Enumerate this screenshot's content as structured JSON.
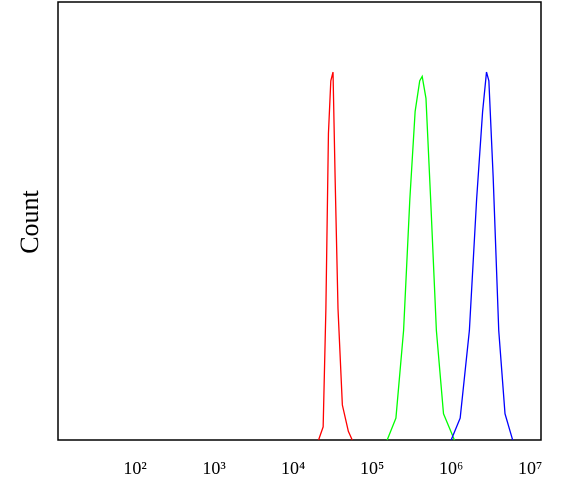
{
  "chart_data": {
    "type": "line",
    "ylabel": "Count",
    "xscale": "log",
    "xlim": [
      10.6,
      13700000
    ],
    "ylim": [
      0,
      100
    ],
    "xticks": [
      {
        "value": 100,
        "label": "10²"
      },
      {
        "value": 1000,
        "label": "10³"
      },
      {
        "value": 10000,
        "label": "10⁴"
      },
      {
        "value": 100000,
        "label": "10⁵"
      },
      {
        "value": 1000000,
        "label": "10⁶"
      },
      {
        "value": 10000000,
        "label": "10⁷"
      }
    ],
    "series": [
      {
        "color": "#ff0000",
        "x": [
          21000,
          24000,
          26000,
          28000,
          30000,
          32000,
          34000,
          37000,
          42000,
          50000,
          56000
        ],
        "values": [
          0,
          3,
          30,
          70,
          82,
          84,
          60,
          30,
          8,
          2,
          0
        ]
      },
      {
        "color": "#00ff00",
        "x": [
          155000,
          200000,
          250000,
          300000,
          350000,
          400000,
          430000,
          480000,
          550000,
          650000,
          800000,
          1100000
        ],
        "values": [
          0,
          5,
          25,
          55,
          75,
          82,
          83,
          78,
          55,
          25,
          6,
          0
        ]
      },
      {
        "color": "#0000ff",
        "x": [
          1000000,
          1300000,
          1700000,
          2100000,
          2500000,
          2800000,
          3000000,
          3400000,
          4000000,
          4800000,
          6000000
        ],
        "values": [
          0,
          5,
          25,
          55,
          75,
          84,
          82,
          60,
          25,
          6,
          0
        ]
      }
    ]
  }
}
